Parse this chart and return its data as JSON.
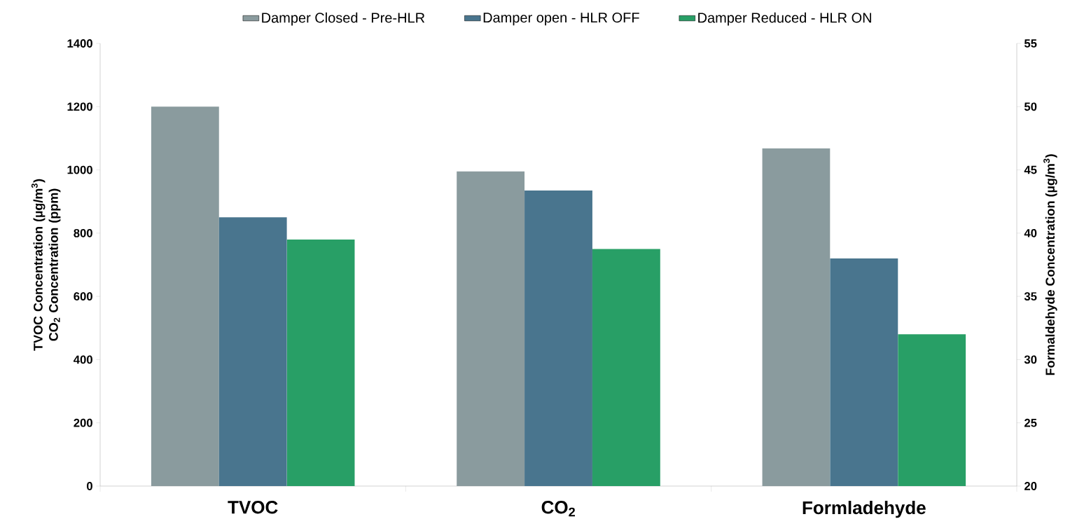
{
  "chart_data": {
    "type": "bar",
    "categories": [
      "TVOC",
      "CO$_{2}$",
      "Formladehyde"
    ],
    "ylabel": "TVOC Concentration (µg/m$^{3}$) CO$_{2}$ Concentration (ppm)",
    "y2label": "Formaldehyde Concentration (µg/m$^{3}$)",
    "ylim": [
      0,
      1400
    ],
    "yticks": [
      0,
      200,
      400,
      600,
      800,
      1000,
      1200,
      1400
    ],
    "y2lim": [
      20,
      55
    ],
    "y2ticks": [
      20,
      25,
      30,
      35,
      40,
      45,
      50,
      55
    ],
    "legend": "top",
    "series": [
      {
        "name": "Damper Closed - Pre-HLR",
        "color": "#8a9b9e",
        "values": [
          1200,
          995,
          null
        ]
      },
      {
        "name": "Damper open - HLR OFF",
        "color": "#49758e",
        "values": [
          850,
          935,
          null
        ]
      },
      {
        "name": "Damper Reduced - HLR ON",
        "color": "#289f66",
        "values": [
          780,
          750,
          null
        ]
      },
      {
        "color": "#8a9b9e",
        "axis": "y2",
        "values": [
          null,
          null,
          46.7
        ]
      },
      {
        "color": "#49758e",
        "axis": "y2",
        "values": [
          null,
          null,
          38
        ]
      },
      {
        "color": "#289f66",
        "axis": "y2",
        "values": [
          null,
          null,
          32
        ]
      }
    ]
  }
}
